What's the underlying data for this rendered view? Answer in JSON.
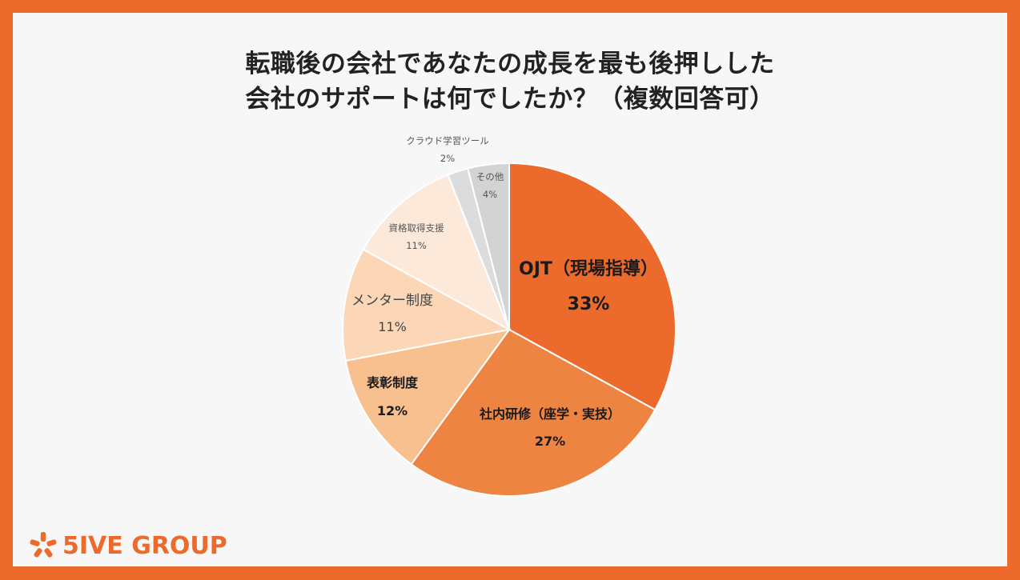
{
  "title": {
    "line1": "転職後の会社であなたの成長を最も後押しした",
    "line2": "会社のサポートは何でしたか？（複数回答可）"
  },
  "brand": {
    "logo_text": "5IVE GROUP",
    "color": "#eb6a2c"
  },
  "chart_data": {
    "type": "pie",
    "title": "転職後の会社であなたの成長を最も後押しした会社のサポートは何でしたか？（複数回答可）",
    "start": "12 o'clock, clockwise",
    "slices": [
      {
        "label": "OJT（現場指導）",
        "value": 33,
        "value_label": "33%",
        "color": "#eb6a2c",
        "label_color": "#1a1a1a",
        "weight": "bold"
      },
      {
        "label": "社内研修（座学・実技）",
        "value": 27,
        "value_label": "27%",
        "color": "#ee8442",
        "label_color": "#1a1a1a",
        "weight": "bold"
      },
      {
        "label": "表彰制度",
        "value": 12,
        "value_label": "12%",
        "color": "#f8c08e",
        "label_color": "#1a1a1a",
        "weight": "bold"
      },
      {
        "label": "メンター制度",
        "value": 11,
        "value_label": "11%",
        "color": "#fbd7b7",
        "label_color": "#444444",
        "weight": "normal"
      },
      {
        "label": "資格取得支援",
        "value": 11,
        "value_label": "11%",
        "color": "#fde9d9",
        "label_color": "#555555",
        "weight": "normal"
      },
      {
        "label": "クラウド学習ツール",
        "value": 2,
        "value_label": "2%",
        "color": "#dcdcdc",
        "label_color": "#555555",
        "weight": "normal"
      },
      {
        "label": "その他",
        "value": 4,
        "value_label": "4%",
        "color": "#d3d3d3",
        "label_color": "#555555",
        "weight": "normal"
      }
    ]
  }
}
